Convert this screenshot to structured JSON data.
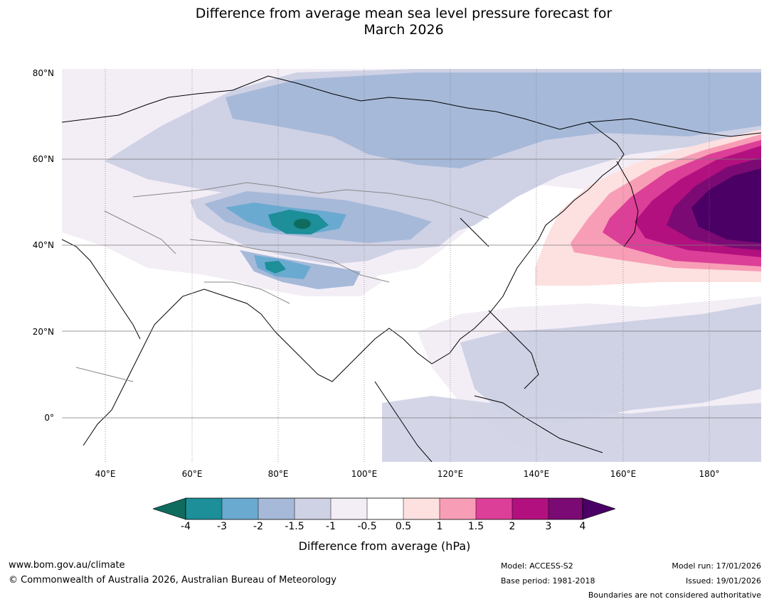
{
  "title_line1": "Difference from average mean sea level pressure forecast for",
  "title_line2": "March 2026",
  "map": {
    "lat_labels": [
      "80°N",
      "60°N",
      "40°N",
      "20°N",
      "0°"
    ],
    "lon_labels": [
      "40°E",
      "60°E",
      "80°E",
      "100°E",
      "120°E",
      "140°E",
      "160°E",
      "180°"
    ],
    "colors": {
      "m4": "#0f6b5e",
      "m3": "#1c8f98",
      "m2": "#6aaad1",
      "m15": "#a6b9d9",
      "m1": "#cfd1e5",
      "m05": "#f3eef6",
      "zero": "#ffffff",
      "p05": "#fde0e0",
      "p1": "#f89db6",
      "p15": "#dc3f97",
      "p2": "#b2107f",
      "p3": "#7b0a74",
      "p4": "#4a0064"
    }
  },
  "colorbar": {
    "ticks": [
      "-4",
      "-3",
      "-2",
      "-1.5",
      "-1",
      "-0.5",
      "0.5",
      "1",
      "1.5",
      "2",
      "3",
      "4"
    ],
    "label": "Difference from average (hPa)"
  },
  "footer": {
    "website": "www.bom.gov.au/climate",
    "copyright": "© Commonwealth of Australia 2026, Australian Bureau of Meteorology",
    "model": "Model: ACCESS-S2",
    "base_period": "Base period: 1981-2018",
    "model_run": "Model run: 17/01/2026",
    "issued": "Issued: 19/01/2026",
    "disclaimer": "Boundaries are not considered authoritative"
  }
}
